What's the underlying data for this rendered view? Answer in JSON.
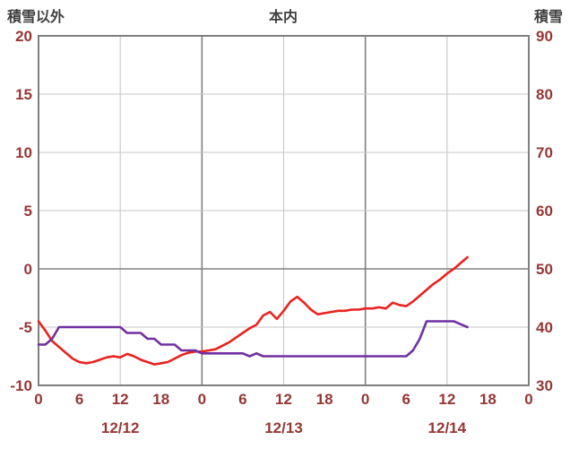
{
  "header": {
    "left_axis_title": "積雪以外",
    "chart_title": "本内",
    "right_axis_title": "積雪"
  },
  "chart_data": {
    "type": "line",
    "title": "本内",
    "left_axis": {
      "label": "積雪以外",
      "min": -10,
      "max": 20,
      "tick_step": 5,
      "ticks_top_to_bottom": [
        20,
        15,
        10,
        5,
        0,
        -5,
        -10
      ]
    },
    "right_axis": {
      "label": "積雪",
      "min": 30,
      "max": 90,
      "tick_step": 10,
      "ticks_top_to_bottom": [
        90,
        80,
        70,
        60,
        50,
        40,
        30
      ]
    },
    "x_axis": {
      "unit": "hour",
      "min": 0,
      "max": 72,
      "tick_step": 6,
      "tick_labels": [
        "0",
        "6",
        "12",
        "18",
        "0",
        "6",
        "12",
        "18",
        "0",
        "6",
        "12",
        "18",
        "0"
      ],
      "grid_step": 12,
      "day_boundary_hours": [
        24,
        48
      ],
      "date_labels": [
        {
          "label": "12/12",
          "hour": 12
        },
        {
          "label": "12/13",
          "hour": 36
        },
        {
          "label": "12/14",
          "hour": 60
        }
      ]
    },
    "grid": {
      "minor_color": "#c6c6c6",
      "major_color": "#808080",
      "border_color": "#7f7f7f"
    },
    "text_colors": {
      "tick": "#953735",
      "title": "#3f3f3f"
    },
    "series": [
      {
        "name": "red-line",
        "axis": "left",
        "color": "#e8231f",
        "x_start": 0,
        "x_step": 1,
        "values": [
          -4.5,
          -5.3,
          -6.2,
          -6.7,
          -7.2,
          -7.7,
          -8.0,
          -8.1,
          -8.0,
          -7.8,
          -7.6,
          -7.5,
          -7.6,
          -7.3,
          -7.5,
          -7.8,
          -8.0,
          -8.2,
          -8.1,
          -8.0,
          -7.7,
          -7.4,
          -7.2,
          -7.1,
          -7.1,
          -7.0,
          -6.9,
          -6.6,
          -6.3,
          -5.9,
          -5.5,
          -5.1,
          -4.8,
          -4.0,
          -3.7,
          -4.3,
          -3.6,
          -2.8,
          -2.4,
          -2.9,
          -3.5,
          -3.9,
          -3.8,
          -3.7,
          -3.6,
          -3.6,
          -3.5,
          -3.5,
          -3.4,
          -3.4,
          -3.3,
          -3.4,
          -2.9,
          -3.1,
          -3.2,
          -2.8,
          -2.3,
          -1.8,
          -1.3,
          -0.9,
          -0.4,
          0.0,
          0.5,
          1.0
        ]
      },
      {
        "name": "purple-line",
        "axis": "right",
        "color": "#7030a0",
        "x_start": 0,
        "x_step": 1,
        "values": [
          37,
          37,
          38,
          40,
          40,
          40,
          40,
          40,
          40,
          40,
          40,
          40,
          40,
          39,
          39,
          39,
          38,
          38,
          37,
          37,
          37,
          36,
          36,
          36,
          35.5,
          35.5,
          35.5,
          35.5,
          35.5,
          35.5,
          35.5,
          35,
          35.5,
          35,
          35,
          35,
          35,
          35,
          35,
          35,
          35,
          35,
          35,
          35,
          35,
          35,
          35,
          35,
          35,
          35,
          35,
          35,
          35,
          35,
          35,
          36,
          38,
          41,
          41,
          41,
          41,
          41,
          40.5,
          40
        ]
      }
    ]
  }
}
